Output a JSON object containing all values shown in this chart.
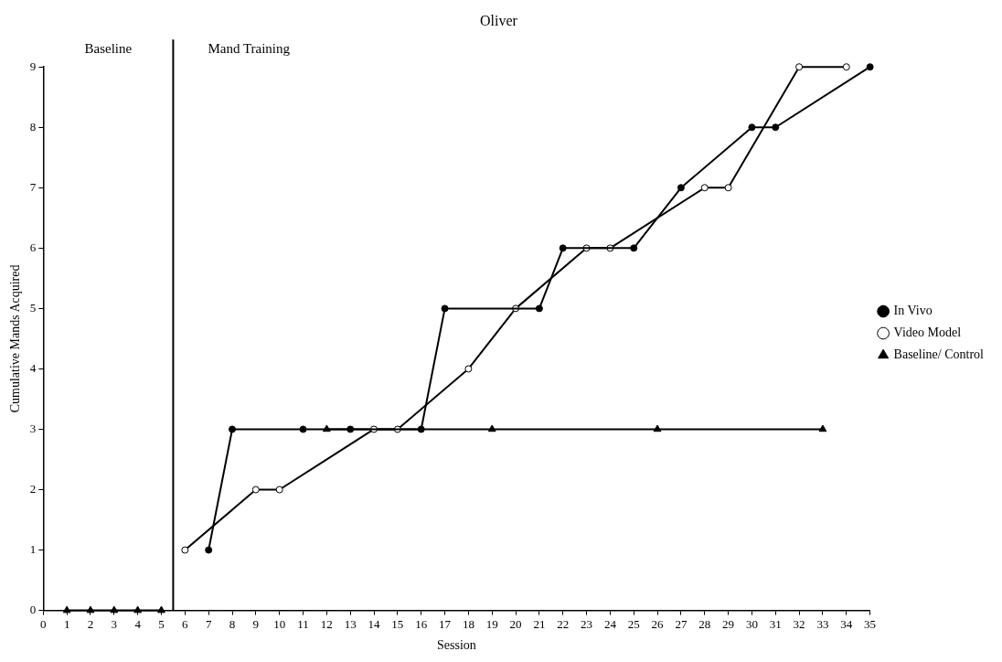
{
  "chart_data": {
    "type": "line",
    "title": "Oliver",
    "xlabel": "Session",
    "ylabel": "Cumulative Mands Acquired",
    "xlim": [
      0,
      35
    ],
    "xticks": [
      0,
      1,
      2,
      3,
      4,
      5,
      6,
      7,
      8,
      9,
      10,
      11,
      12,
      13,
      14,
      15,
      16,
      17,
      18,
      19,
      20,
      21,
      22,
      23,
      24,
      25,
      26,
      27,
      28,
      29,
      30,
      31,
      32,
      33,
      34,
      35
    ],
    "ylim": [
      0,
      9
    ],
    "yticks": [
      0,
      1,
      2,
      3,
      4,
      5,
      6,
      7,
      8,
      9
    ],
    "grid": false,
    "legend": "right",
    "line_style": "solid",
    "ref_lines": [
      {
        "axis": "x",
        "value": 5.5,
        "color": "#000000"
      }
    ],
    "annotations": [
      "Baseline",
      "Mand Training"
    ],
    "series": [
      {
        "name": "In Vivo",
        "color": "#000000",
        "marker": "circle",
        "x": [
          7,
          8,
          11,
          13,
          16,
          17,
          21,
          22,
          25,
          27,
          30,
          31,
          35
        ],
        "values": [
          1,
          3,
          3,
          3,
          3,
          5,
          5,
          6,
          6,
          7,
          8,
          8,
          9
        ]
      },
      {
        "name": "Video Model",
        "color": "#000000",
        "marker": "circle_open",
        "x": [
          6,
          9,
          10,
          14,
          15,
          18,
          20,
          23,
          24,
          28,
          29,
          32,
          34
        ],
        "values": [
          1,
          2,
          2,
          3,
          3,
          4,
          5,
          6,
          6,
          7,
          7,
          9,
          9
        ]
      },
      {
        "name": "Baseline/ Control",
        "color": "#000000",
        "marker": "triangle",
        "x": [
          1,
          2,
          3,
          4,
          5,
          5.5,
          12,
          19,
          26,
          33
        ],
        "values": [
          0,
          0,
          0,
          0,
          0,
          null,
          3,
          3,
          3,
          3
        ]
      }
    ]
  }
}
